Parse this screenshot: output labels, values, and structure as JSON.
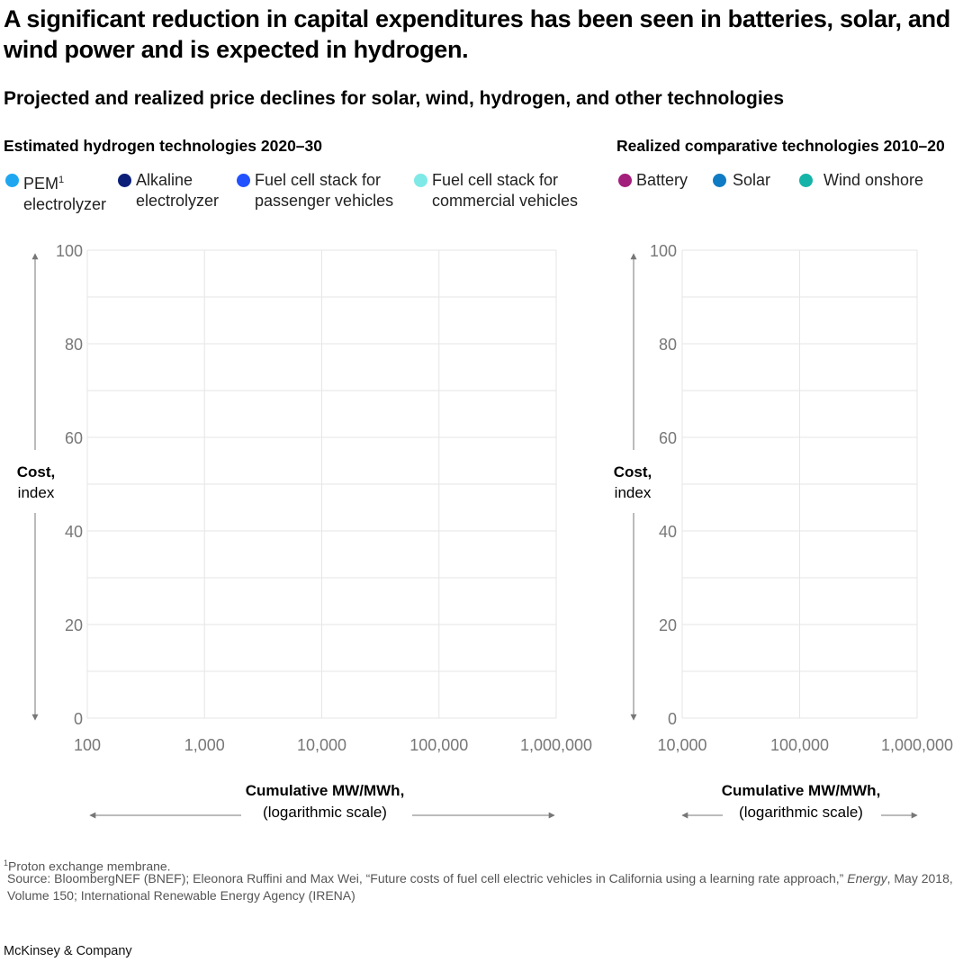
{
  "title": "A significant reduction in capital expenditures has been seen in batteries, solar, and wind power and is expected in hydrogen.",
  "subtitle": "Projected and realized price declines for solar, wind, hydrogen, and other technologies",
  "chart_data": [
    {
      "type": "line",
      "title": "Estimated hydrogen technologies 2020–30",
      "xlabel": "Cumulative MW/MWh,",
      "xlabel_note": "(logarithmic scale)",
      "ylabel": "Cost,",
      "ylabel_note": "index",
      "x_scale": "log",
      "xlim": [
        100,
        1000000
      ],
      "ylim": [
        0,
        100
      ],
      "x_ticks": [
        "100",
        "1,000",
        "10,000",
        "100,000",
        "1,000,000"
      ],
      "x_tick_values": [
        100,
        1000,
        10000,
        100000,
        1000000
      ],
      "y_ticks": [
        "0",
        "20",
        "40",
        "60",
        "80",
        "100"
      ],
      "y_tick_values": [
        0,
        20,
        40,
        60,
        80,
        100
      ],
      "grid": true,
      "legend_placement": "top",
      "series": [
        {
          "name": "PEM",
          "name_sup": "1",
          "name_line2": "electrolyzer",
          "color": "#1ea7f0",
          "points": []
        },
        {
          "name": "Alkaline",
          "name_line2": "electrolyzer",
          "color": "#0b1f78",
          "points": []
        },
        {
          "name": "Fuel cell stack for",
          "name_line2": "passenger vehicles",
          "color": "#2251ff",
          "points": []
        },
        {
          "name": "Fuel cell stack for",
          "name_line2": "commercial vehicles",
          "color": "#7ee9e6",
          "points": []
        }
      ]
    },
    {
      "type": "line",
      "title": "Realized comparative technologies 2010–20",
      "xlabel": "Cumulative MW/MWh,",
      "xlabel_note": "(logarithmic scale)",
      "ylabel": "Cost,",
      "ylabel_note": "index",
      "x_scale": "log",
      "xlim": [
        10000,
        1000000
      ],
      "ylim": [
        0,
        100
      ],
      "x_ticks": [
        "10,000",
        "100,000",
        "1,000,000"
      ],
      "x_tick_values": [
        10000,
        100000,
        1000000
      ],
      "y_ticks": [
        "0",
        "20",
        "40",
        "60",
        "80",
        "100"
      ],
      "y_tick_values": [
        0,
        20,
        40,
        60,
        80,
        100
      ],
      "grid": true,
      "legend_placement": "top",
      "series": [
        {
          "name": "Battery",
          "color": "#a21f7c",
          "points": []
        },
        {
          "name": "Solar",
          "color": "#0f7bc4",
          "points": []
        },
        {
          "name": "Wind onshore",
          "color": "#16b3a8",
          "points": []
        }
      ]
    }
  ],
  "footnote": "Proton exchange membrane.",
  "footnote_marker": "1",
  "source_prefix": "Source: BloombergNEF (BNEF); Eleonora Ruffini and Max Wei, “Future costs of fuel cell electric vehicles in California using a learning rate approach,” ",
  "source_journal": "Energy",
  "source_suffix": ", May 2018, Volume 150; International Renewable Energy Agency (IRENA)",
  "brand": "McKinsey & Company"
}
